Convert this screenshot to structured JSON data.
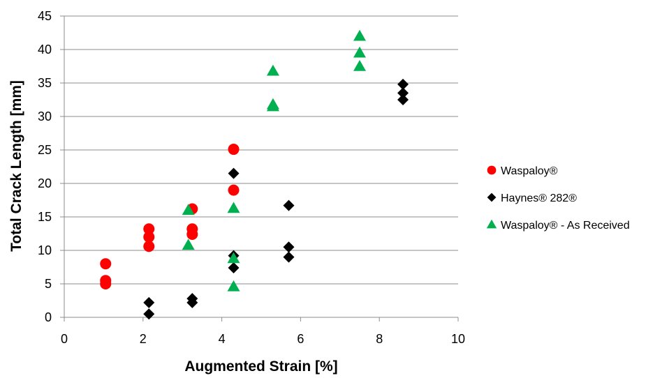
{
  "chart_data": {
    "type": "scatter",
    "xlabel": "Augmented Strain [%]",
    "ylabel": "Total Crack Length [mm]",
    "xlim": [
      0,
      10
    ],
    "ylim": [
      0,
      45
    ],
    "x_ticks": [
      0,
      2,
      4,
      6,
      8,
      10
    ],
    "y_ticks": [
      0,
      5,
      10,
      15,
      20,
      25,
      30,
      35,
      40,
      45
    ],
    "grid": "horizontal major gridlines",
    "legend_position": "right",
    "series": [
      {
        "name": "Waspaloy®",
        "marker": "circle",
        "color": "#ff0000",
        "points": [
          [
            1.05,
            8.0
          ],
          [
            1.05,
            5.5
          ],
          [
            1.05,
            5.0
          ],
          [
            2.15,
            13.2
          ],
          [
            2.15,
            12.0
          ],
          [
            2.15,
            10.6
          ],
          [
            3.25,
            16.2
          ],
          [
            3.25,
            13.2
          ],
          [
            3.25,
            12.4
          ],
          [
            4.3,
            25.1
          ],
          [
            4.3,
            19.0
          ]
        ]
      },
      {
        "name": "Haynes® 282®",
        "marker": "diamond",
        "color": "#000000",
        "points": [
          [
            2.15,
            2.2
          ],
          [
            2.15,
            0.5
          ],
          [
            3.25,
            2.8
          ],
          [
            3.25,
            2.2
          ],
          [
            4.3,
            21.5
          ],
          [
            4.3,
            9.2
          ],
          [
            4.3,
            7.4
          ],
          [
            5.7,
            16.7
          ],
          [
            5.7,
            10.5
          ],
          [
            5.7,
            9.0
          ],
          [
            8.6,
            34.8
          ],
          [
            8.6,
            33.5
          ],
          [
            8.6,
            32.5
          ]
        ]
      },
      {
        "name": "Waspaloy® - As Received",
        "marker": "triangle",
        "color": "#00b050",
        "points": [
          [
            3.15,
            16.0
          ],
          [
            3.15,
            10.8
          ],
          [
            4.3,
            16.3
          ],
          [
            4.3,
            8.8
          ],
          [
            4.3,
            4.6
          ],
          [
            5.3,
            36.8
          ],
          [
            5.3,
            31.8
          ],
          [
            5.3,
            31.5
          ],
          [
            7.5,
            42.0
          ],
          [
            7.5,
            39.5
          ],
          [
            7.5,
            37.5
          ]
        ]
      }
    ]
  }
}
